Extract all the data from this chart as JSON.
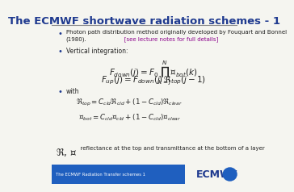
{
  "title": "The ECMWF shortwave radiation schemes - 1",
  "title_color": "#1F3A8F",
  "background_color": "#F5F5F0",
  "bullet1_text": "Photon path distribution method originally developed by Fouquart and Bonnel\n(1980).",
  "bullet1_note": "   [see lecture notes for full details]",
  "bullet1_note_color": "#8B008B",
  "bullet2_text": "Vertical integration:",
  "bullet3_text": "with",
  "eq1": "$F_{down}(j) = F_0 \\prod_{k=j}^{N} \\mathfrak{T}_{bot}(k)$",
  "eq2": "$F_{up}(j) = F_{down}(j)\\,\\mathfrak{R}_{top}(j-1)$",
  "eq3": "$\\mathfrak{R}_{top} = C_{cld}\\mathfrak{R}_{cld} + (1 - C_{cld})\\mathfrak{R}_{clear}$",
  "eq4": "$\\mathfrak{T}_{bot} = C_{cld}\\mathfrak{T}_{cld} + (1 - C_{cld})\\mathfrak{T}_{clear}$",
  "footer_math": "$\\mathfrak{R},\\, \\mathfrak{T}$",
  "footer_text": "  reflectance at the top and transmittance at the bottom of a layer",
  "footer_bar_color": "#1F5FBF",
  "footer_bar_text": "The ECMWF Radiation Transfer schemes 1",
  "footer_ecmwf": "ECMWF",
  "footer_ecmwf_color": "#1F3A8F",
  "bullet_color": "#1F3A8F",
  "text_color": "#222222",
  "hr_color": "#888888"
}
